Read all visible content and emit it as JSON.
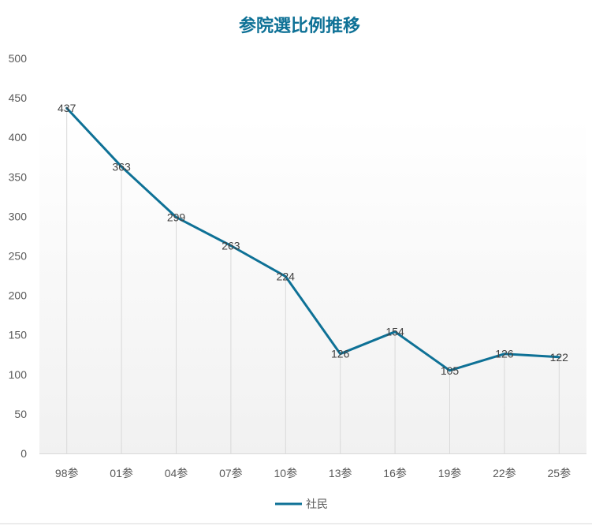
{
  "chart_data": {
    "type": "line",
    "title": "参院選比例推移",
    "xlabel": "",
    "ylabel": "",
    "categories": [
      "98参",
      "01参",
      "04参",
      "07参",
      "10参",
      "13参",
      "16参",
      "19参",
      "22参",
      "25参"
    ],
    "series": [
      {
        "name": "社民",
        "color": "#0E7196",
        "values": [
          437,
          363,
          299,
          263,
          224,
          126,
          154,
          105,
          126,
          122
        ]
      }
    ],
    "ylim": [
      0,
      500
    ],
    "yticks": [
      0,
      50,
      100,
      150,
      200,
      250,
      300,
      350,
      400,
      450,
      500
    ],
    "data_labels": true,
    "drop_lines": true,
    "legend": "bottom-center",
    "title_color": "#0E7196"
  }
}
